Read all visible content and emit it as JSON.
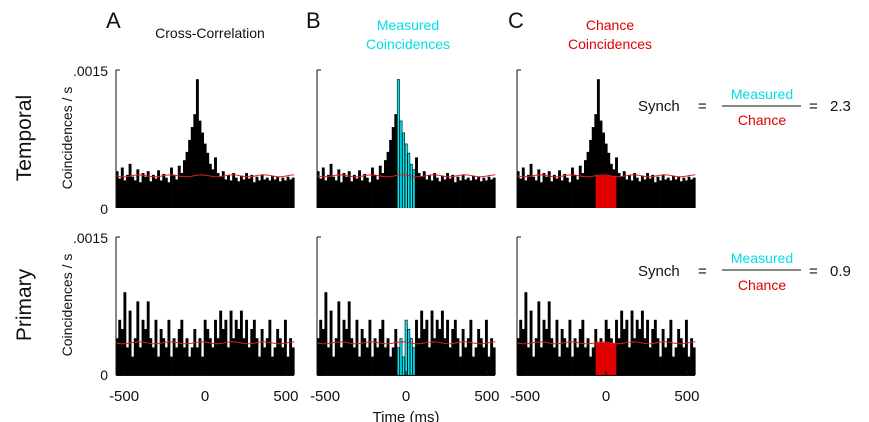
{
  "panel_letters": [
    "A",
    "B",
    "C"
  ],
  "column_titles": {
    "A": [
      "Cross-Correlation"
    ],
    "B": [
      "Measured",
      "Coincidences"
    ],
    "C": [
      "Chance",
      "Coincidences"
    ]
  },
  "row_labels": [
    "Temporal",
    "Primary"
  ],
  "ylabel": "Coincidences / s",
  "xlabel": "Time (ms)",
  "synch_label": "Synch",
  "measured_label": "Measured",
  "chance_label": "Chance",
  "colors": {
    "measured": "#00e5f0",
    "chance": "#e00000",
    "bars": "#000000",
    "chance_line": "#e02020"
  },
  "chart_data": {
    "type": "bar",
    "xlim": [
      -550,
      550
    ],
    "ylim": [
      0,
      0.0015
    ],
    "x_ticks": [
      -500,
      0,
      500
    ],
    "x_tick_labels": [
      "-500",
      "0",
      "500"
    ],
    "y_tick_labels": [
      ".0015",
      "0"
    ],
    "bin_width_ms": 16,
    "window_ms": [
      -64,
      64
    ],
    "grid": false,
    "rows": [
      {
        "name": "Temporal",
        "synch": "2.3",
        "chance_level": 0.00035,
        "values": [
          0.0004,
          0.00032,
          0.00044,
          0.0003,
          0.00036,
          0.00048,
          0.00034,
          0.0003,
          0.00042,
          0.00028,
          0.00038,
          0.00034,
          0.0004,
          0.00029,
          0.00036,
          0.00032,
          0.00041,
          0.0003,
          0.00037,
          0.00033,
          0.00028,
          0.00044,
          0.00036,
          0.00031,
          0.00046,
          0.00038,
          0.00052,
          0.00061,
          0.00074,
          0.00088,
          0.00102,
          0.0014,
          0.00095,
          0.00082,
          0.0007,
          0.0006,
          0.00048,
          0.00042,
          0.00055,
          0.00038,
          0.00034,
          0.0004,
          0.00031,
          0.00036,
          0.0003,
          0.00038,
          0.00033,
          0.00029,
          0.00035,
          0.00031,
          0.00038,
          0.00032,
          0.00036,
          0.00028,
          0.00034,
          0.0003,
          0.00036,
          0.00031,
          0.00033,
          0.0003,
          0.00035,
          0.00031,
          0.00034,
          0.00029,
          0.00033,
          0.0003,
          0.00034,
          0.00031,
          0.00033
        ]
      },
      {
        "name": "Primary",
        "synch": "0.9",
        "chance_level": 0.00035,
        "values": [
          0.0004,
          0.0006,
          0.0005,
          0.0009,
          0.0003,
          0.0007,
          0.0002,
          0.0004,
          0.0008,
          0.0003,
          0.0006,
          0.0005,
          0.0008,
          0.0004,
          0.0003,
          0.0006,
          0.0002,
          0.0005,
          0.0004,
          0.0003,
          0.0006,
          0.0002,
          0.0004,
          0.0003,
          0.0005,
          0.0006,
          0.0003,
          0.0004,
          0.0002,
          0.0003,
          0.0005,
          0.0003,
          0.0004,
          0.0002,
          0.0006,
          0.0005,
          0.0004,
          0.0003,
          0.0006,
          0.0004,
          0.0007,
          0.0005,
          0.0006,
          0.0003,
          0.0007,
          0.0004,
          0.0006,
          0.0005,
          0.0007,
          0.0004,
          0.0006,
          0.0003,
          0.0005,
          0.0006,
          0.0004,
          0.0002,
          0.0005,
          0.0003,
          0.0004,
          0.0006,
          0.0002,
          0.0003,
          0.0005,
          0.0004,
          0.0003,
          0.0006,
          0.0002,
          0.0004,
          0.0003
        ]
      }
    ]
  }
}
